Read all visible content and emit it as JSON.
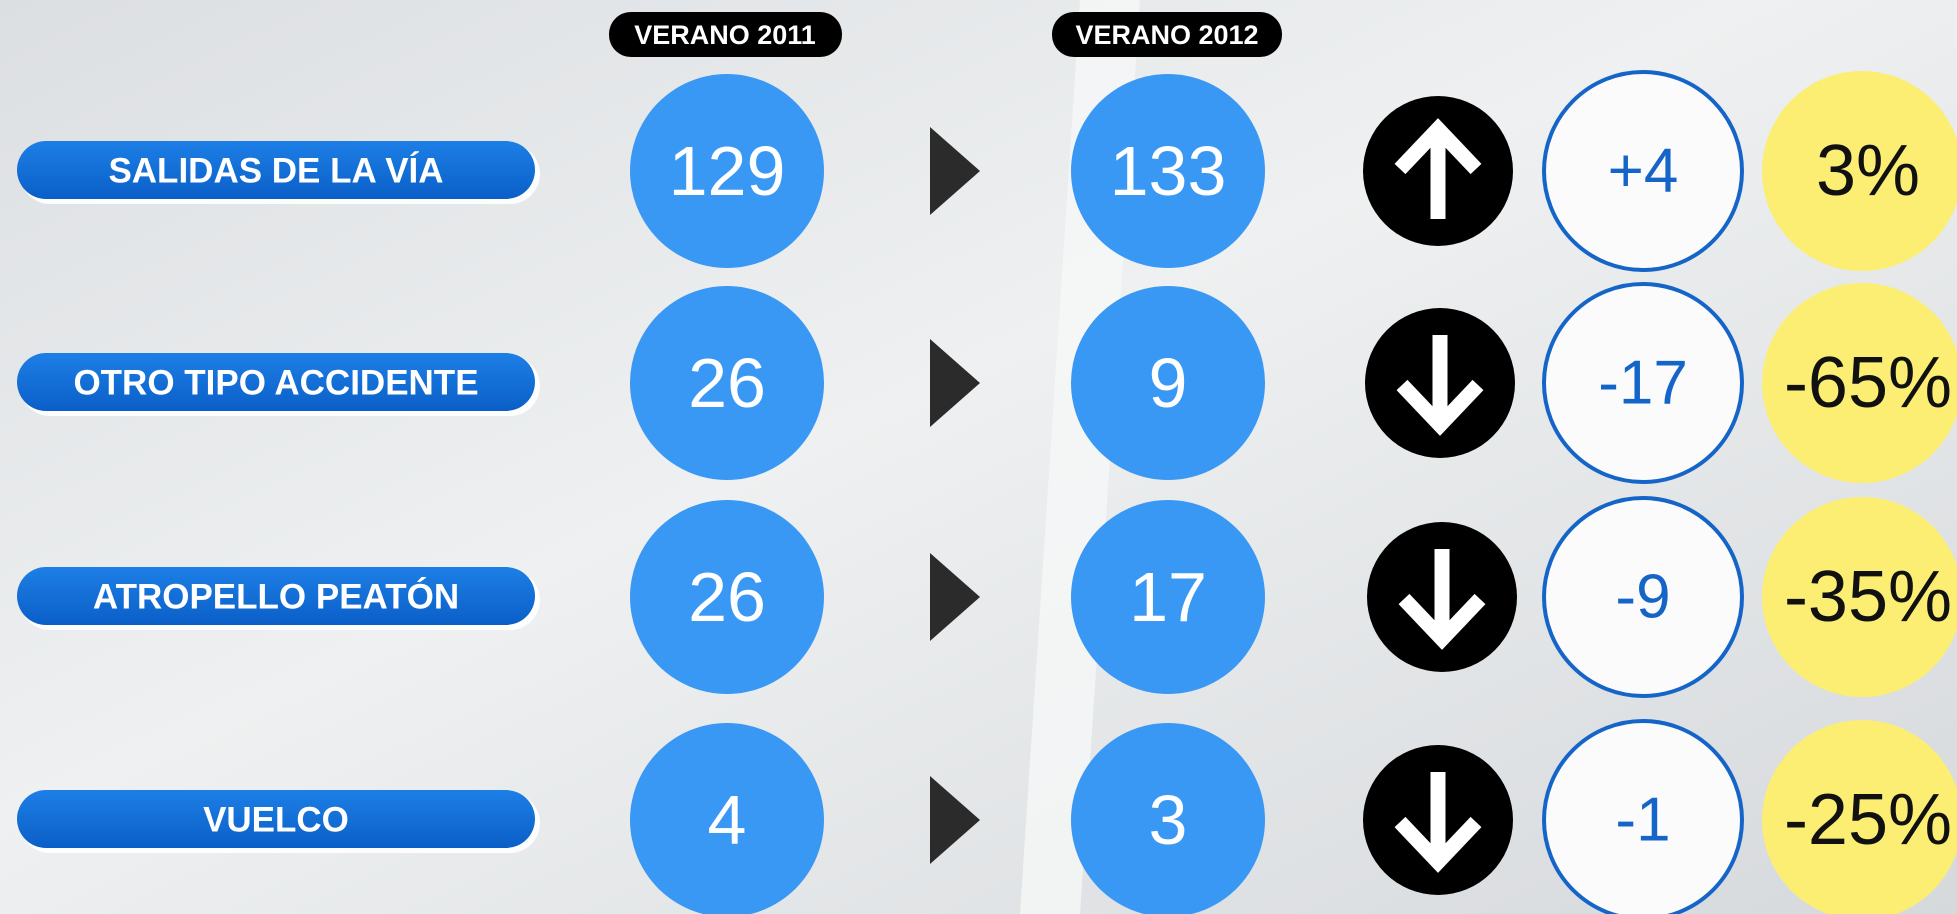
{
  "header": {
    "col_2011": "VERANO 2011",
    "col_2012": "VERANO 2012"
  },
  "rows": [
    {
      "label": "SALIDAS DE LA VÍA",
      "v2011": "129",
      "v2012": "133",
      "diff": "+4",
      "pct": "3%"
    },
    {
      "label": "OTRO TIPO ACCIDENTE",
      "v2011": "26",
      "v2012": "9",
      "diff": "-17",
      "pct": "-65%"
    },
    {
      "label": "ATROPELLO PEATÓN",
      "v2011": "26",
      "v2012": "17",
      "diff": "-9",
      "pct": "-35%"
    },
    {
      "label": "VUELCO",
      "v2011": "4",
      "v2012": "3",
      "diff": "-1",
      "pct": "-25%"
    }
  ]
}
